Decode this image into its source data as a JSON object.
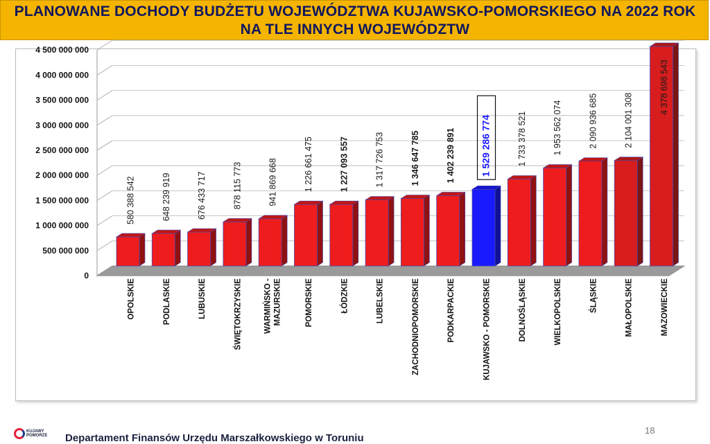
{
  "header": {
    "title_line1": "PLANOWANE DOCHODY BUDŻETU WOJEWÓDZTWA KUJAWSKO-POMORSKIEGO NA 2022 ROK",
    "title_line2": "NA TLE INNYCH WOJEWÓDZTW"
  },
  "footer": {
    "department": "Departament Finansów Urzędu Marszałkowskiego w Toruniu",
    "page_number": "18",
    "logo_text_line1": "KUJAWY",
    "logo_text_line2": "POMORZE"
  },
  "colors": {
    "title_background": "#f5b400",
    "title_text": "#10175e",
    "bar_red": "#ee1c1c",
    "bar_dark_red": "#7a1515",
    "bar_blue": "#1a1aff",
    "highlight_label": "#1a1aff"
  },
  "chart_data": {
    "type": "bar",
    "style": "3d",
    "title": "",
    "xlabel": "",
    "ylabel": "",
    "ylim": [
      0,
      4500000000
    ],
    "yticks": [
      "0",
      "500 000 000",
      "1 000 000 000",
      "1 500 000 000",
      "2 000 000 000",
      "2 500 000 000",
      "3 000 000 000",
      "3 500 000 000",
      "4 000 000 000",
      "4 500 000 000"
    ],
    "grid": true,
    "legend": "none",
    "categories": [
      "OPOLSKIE",
      "PODLASKIE",
      "LUBUSKIE",
      "ŚWIĘTOKRZYSKIE",
      "WARMIŃSKO - MAZURSKIE",
      "POMORSKIE",
      "ŁÓDZKIE",
      "LUBELSKIE",
      "ZACHODNIOPOMORSKIE",
      "PODKARPACKIE",
      "KUJAWSKO - POMORSKIE",
      "DOLNOŚLĄSKIE",
      "WIELKOPOLSKIE",
      "ŚLĄSKIE",
      "MAŁOPOLSKIE",
      "MAZOWIECKIE"
    ],
    "values": [
      580388542,
      648239919,
      676433717,
      878115773,
      941869668,
      1226661475,
      1227093557,
      1317726753,
      1346647785,
      1402239891,
      1529286774,
      1733378521,
      1953562074,
      2090936685,
      2104001308,
      4378698543
    ],
    "value_labels": [
      "580 388 542",
      "648 239 919",
      "676 433 717",
      "878 115 773",
      "941 869 668",
      "1 226 661 475",
      "1 227 093 557",
      "1 317 726 753",
      "1 346 647 785",
      "1 402 239 891",
      "1 529 286 774",
      "1 733 378 521",
      "1 953 562 074",
      "2 090 936 685",
      "2 104 001 308",
      "4 378 698 543"
    ],
    "highlight_index": 10
  }
}
